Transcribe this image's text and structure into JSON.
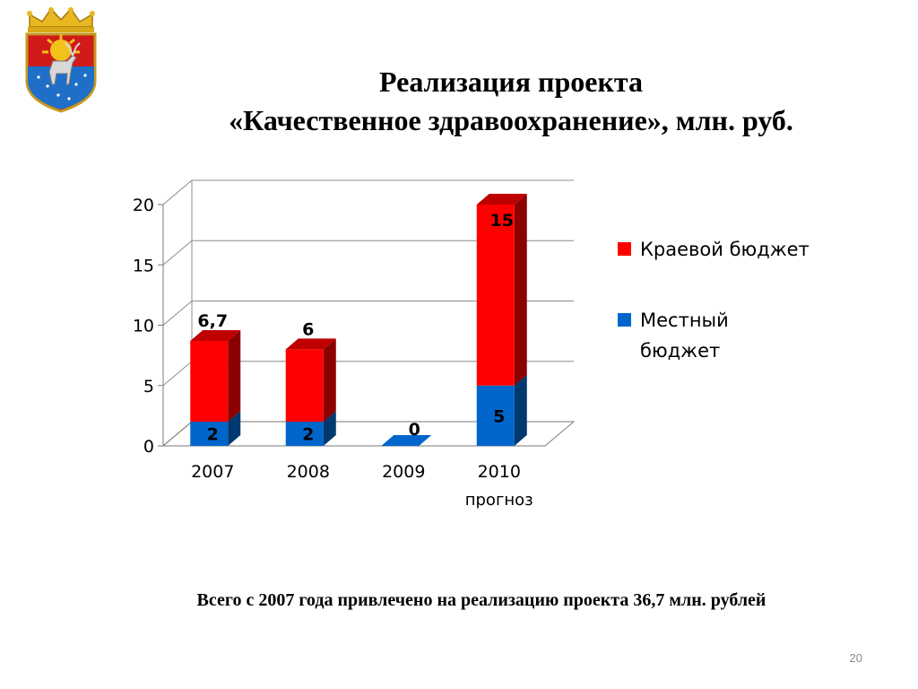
{
  "slide": {
    "title_line1": "Реализация проекта",
    "title_line2": "«Качественное здравоохранение», млн. руб.",
    "footer": "Всего с 2007 года привлечено на реализацию проекта 36,7 млн. рублей",
    "page_number": "20"
  },
  "chart_data": {
    "type": "bar",
    "stacked": true,
    "three_d": true,
    "categories": [
      "2007",
      "2008",
      "2009",
      "2010"
    ],
    "category_sublabels": [
      "",
      "",
      "",
      "прогноз"
    ],
    "series": [
      {
        "name": "Местный бюджет",
        "values": [
          2,
          2,
          0,
          5
        ],
        "labels": [
          "2",
          "2",
          "0",
          "5"
        ],
        "color": "#0066cc"
      },
      {
        "name": "Краевой бюджет",
        "values": [
          6.7,
          6,
          0,
          15
        ],
        "labels": [
          "6,7",
          "6",
          "",
          "15"
        ],
        "color": "#ff0000"
      }
    ],
    "ylim": [
      0,
      20
    ],
    "yticks": [
      "0",
      "5",
      "10",
      "15",
      "20"
    ],
    "grid": true,
    "legend": {
      "position": "right",
      "entries": [
        {
          "series": "Краевой бюджет",
          "line1": "Краевой бюджет",
          "line2": ""
        },
        {
          "series": "Местный бюджет",
          "line1": "Местный",
          "line2": "бюджет"
        }
      ]
    }
  }
}
